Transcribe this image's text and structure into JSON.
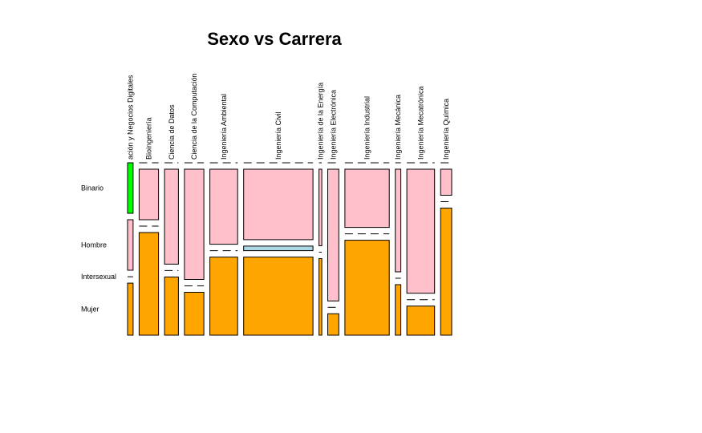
{
  "chart_data": {
    "type": "mosaic",
    "title": "Sexo vs Carrera",
    "x_variable_categories": [
      "Administración y Negocios Digitales",
      "Bioingeniería",
      "Ciencia de Datos",
      "Ciencia de la Computación",
      "Ingeniería Ambiental",
      "Ingeniería Civil",
      "Ingeniería de la Energía",
      "Ingeniería Electrónica",
      "Ingeniería Industrial",
      "Ingeniería Mecánica",
      "Ingeniería Mecatrónica",
      "Ingeniería Química"
    ],
    "column_labels_shown": [
      "ación y Negocios Digitales",
      "Bioingeniería",
      "Ciencia de Datos",
      "Ciencia de la Computación",
      "Ingeniería Ambiental",
      "Ingeniería Civil",
      "Ingeniería de la Energía",
      "Ingeniería Electrónica",
      "Ingeniería Industrial",
      "Ingeniería Mecánica",
      "Ingeniería Mecatrónica",
      "Ingeniería Química"
    ],
    "y_variable_categories": [
      "Binario",
      "Hombre",
      "Intersexual",
      "Mujer"
    ],
    "colors": {
      "Binario": "#00ff00",
      "Hombre": "#ffc0cb",
      "Intersexual": "#add8e6",
      "Mujer": "#ffa500"
    },
    "column_widths_relative": [
      2,
      7,
      5,
      7,
      10,
      25,
      1,
      4,
      16,
      2,
      10,
      4
    ],
    "proportions": [
      [
        0.33,
        0.33,
        0.0,
        0.34
      ],
      [
        0.0,
        0.33,
        0.0,
        0.67
      ],
      [
        0.0,
        0.62,
        0.0,
        0.38
      ],
      [
        0.0,
        0.72,
        0.0,
        0.28
      ],
      [
        0.0,
        0.49,
        0.0,
        0.51
      ],
      [
        0.0,
        0.46,
        0.03,
        0.51
      ],
      [
        0.0,
        0.5,
        0.0,
        0.5
      ],
      [
        0.0,
        0.86,
        0.0,
        0.14
      ],
      [
        0.0,
        0.38,
        0.0,
        0.62
      ],
      [
        0.0,
        0.67,
        0.0,
        0.33
      ],
      [
        0.0,
        0.81,
        0.0,
        0.19
      ],
      [
        0.0,
        0.17,
        0.0,
        0.83
      ]
    ]
  }
}
